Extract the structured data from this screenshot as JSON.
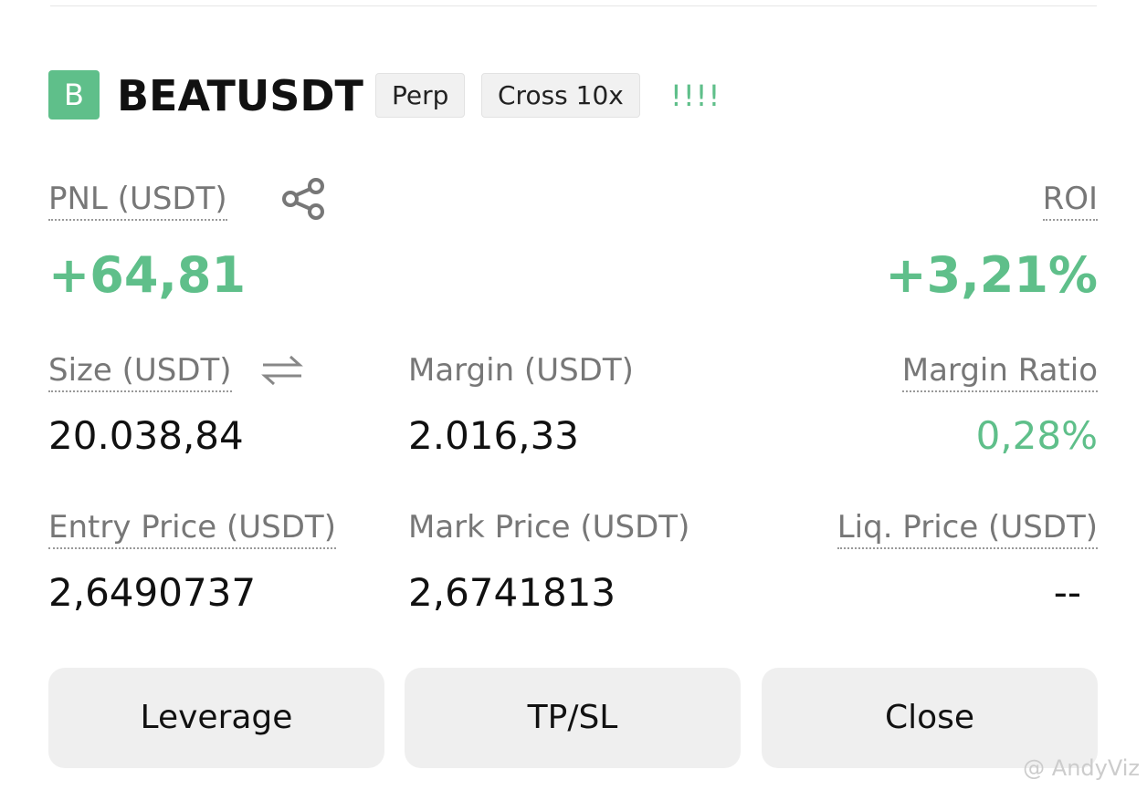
{
  "header": {
    "badge": "B",
    "symbol": "BEATUSDT",
    "tags": [
      "Perp",
      "Cross 10x"
    ],
    "indicator": "!!!!"
  },
  "pnl": {
    "label": "PNL (USDT)",
    "value": "+64,81"
  },
  "roi": {
    "label": "ROI",
    "value": "+3,21%"
  },
  "fields": [
    {
      "label": "Size (USDT)",
      "value": "20.038,84"
    },
    {
      "label": "Margin (USDT)",
      "value": "2.016,33"
    },
    {
      "label": "Margin Ratio",
      "value": "0,28%"
    },
    {
      "label": "Entry Price (USDT)",
      "value": "2,6490737"
    },
    {
      "label": "Mark Price (USDT)",
      "value": "2,6741813"
    },
    {
      "label": "Liq. Price (USDT)",
      "value": "--"
    }
  ],
  "buttons": [
    "Leverage",
    "TP/SL",
    "Close"
  ],
  "watermark": "@ AndyViz"
}
